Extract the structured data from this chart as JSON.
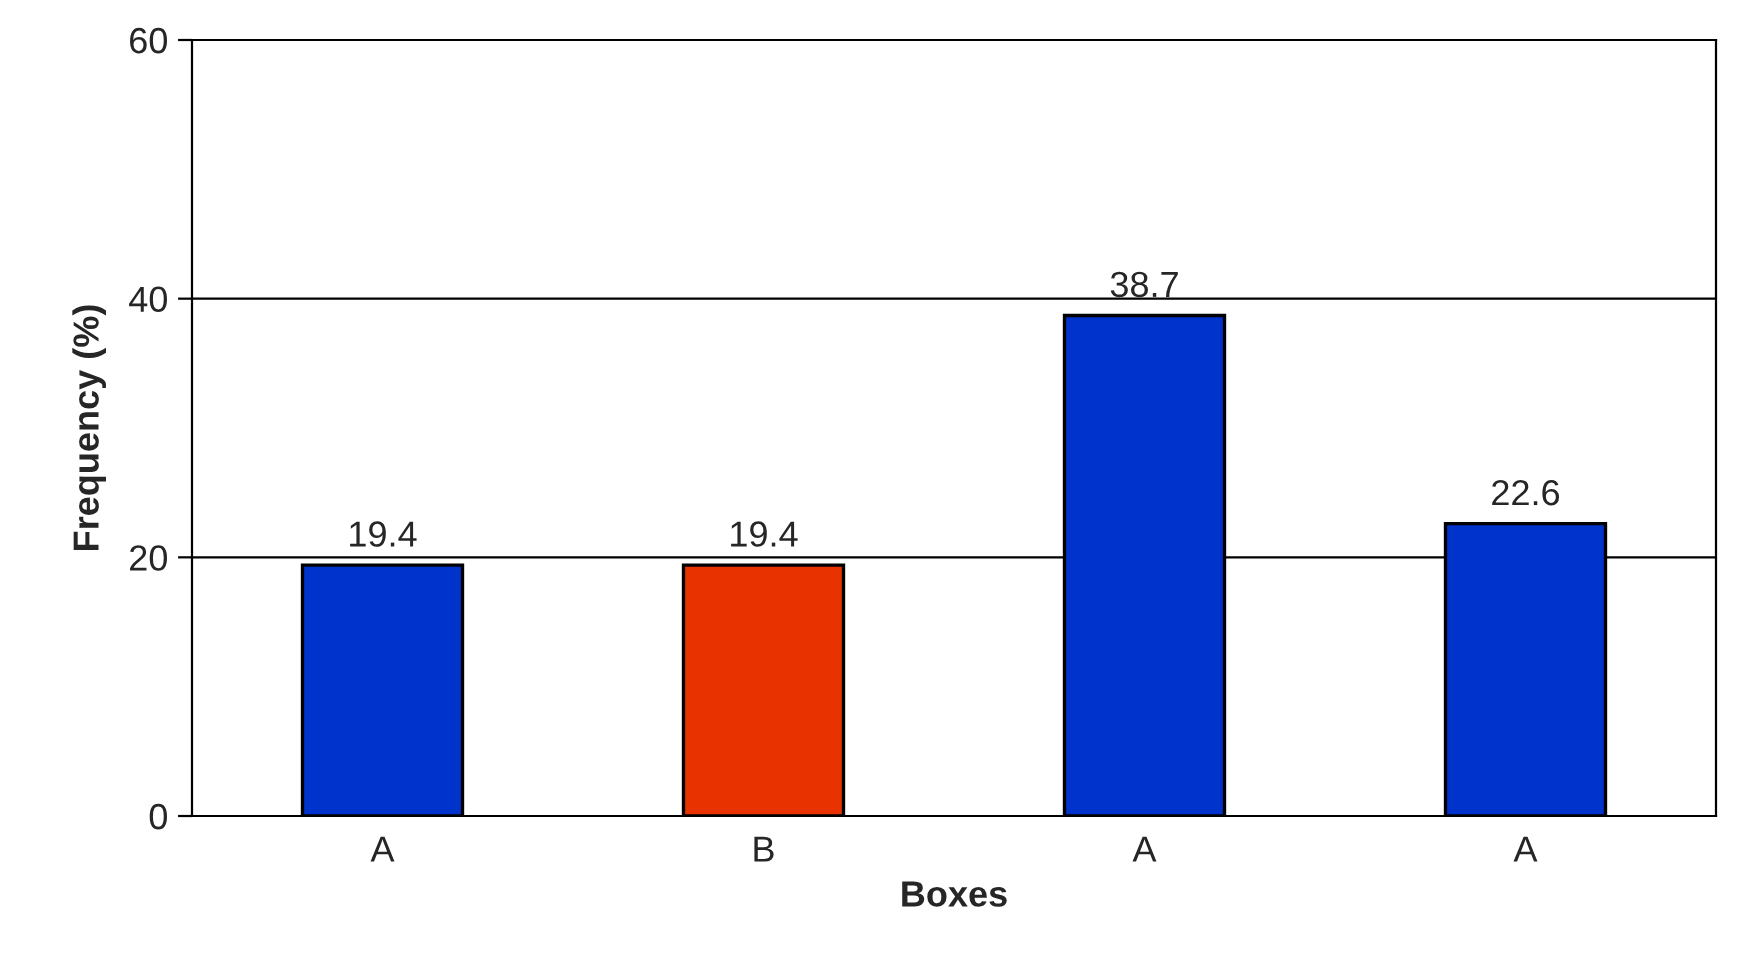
{
  "chart_data": {
    "type": "bar",
    "xlabel": "Boxes",
    "ylabel": "Frequency (%)",
    "categories": [
      "A",
      "B",
      "A",
      "A"
    ],
    "values": [
      19.4,
      19.4,
      38.7,
      22.6
    ],
    "colors": [
      "#0033cc",
      "#e83200",
      "#0033cc",
      "#0033cc"
    ],
    "ylim": [
      0,
      60
    ],
    "yticks": [
      0,
      20,
      40,
      60
    ],
    "grid": "y",
    "data_labels": true,
    "legend": false
  }
}
